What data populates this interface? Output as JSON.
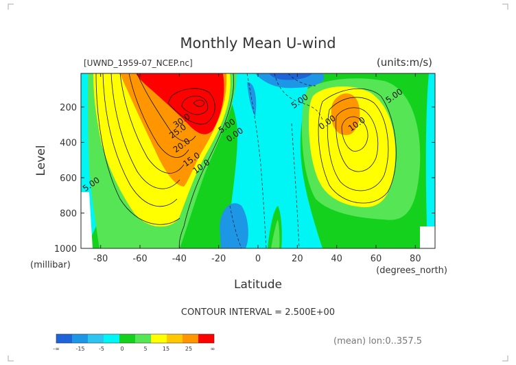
{
  "chart_data": {
    "type": "heatmap",
    "title": "Monthly Mean U-wind",
    "subtitle_left": "[UWND_1959-07_NCEP.nc]",
    "subtitle_right": "(units:m/s)",
    "xlabel": "Latitude",
    "x_units": "(degrees_north)",
    "ylabel": "Level",
    "y_units": "(millibar)",
    "xlim": [
      -90,
      90
    ],
    "ylim": [
      1000,
      10
    ],
    "x_ticks": [
      -80,
      -60,
      -40,
      -20,
      0,
      20,
      40,
      60,
      80
    ],
    "y_ticks": [
      200,
      400,
      600,
      800,
      1000
    ],
    "footer": "CONTOUR INTERVAL = 2.500E+00",
    "note": "(mean) lon:0..357.5",
    "contour_labels": [
      {
        "text": "30.0",
        "lat": -38,
        "lev": 290
      },
      {
        "text": "25.0",
        "lat": -40,
        "lev": 350
      },
      {
        "text": "20.0",
        "lat": -38,
        "lev": 430
      },
      {
        "text": "15.0",
        "lat": -33,
        "lev": 510
      },
      {
        "text": "10.0",
        "lat": -28,
        "lev": 550
      },
      {
        "text": "5.00",
        "lat": -15,
        "lev": 320
      },
      {
        "text": "0.00",
        "lat": -11,
        "lev": 370
      },
      {
        "text": "5.00",
        "lat": -84,
        "lev": 650
      },
      {
        "text": "5.00",
        "lat": 22,
        "lev": 180
      },
      {
        "text": "0.00",
        "lat": 36,
        "lev": 300
      },
      {
        "text": "10.0",
        "lat": 51,
        "lev": 310
      },
      {
        "text": "5.00",
        "lat": 70,
        "lev": 150
      }
    ],
    "colorbar": {
      "colors": [
        "#1e64d8",
        "#1e96e6",
        "#2dc4f0",
        "#00f5f5",
        "#14d11e",
        "#55e555",
        "#ffff00",
        "#ffc800",
        "#ff9600",
        "#ff0000"
      ],
      "labels": [
        "-∞",
        "-15",
        "-5",
        "0",
        "5",
        "15",
        "25",
        "∞"
      ]
    }
  }
}
